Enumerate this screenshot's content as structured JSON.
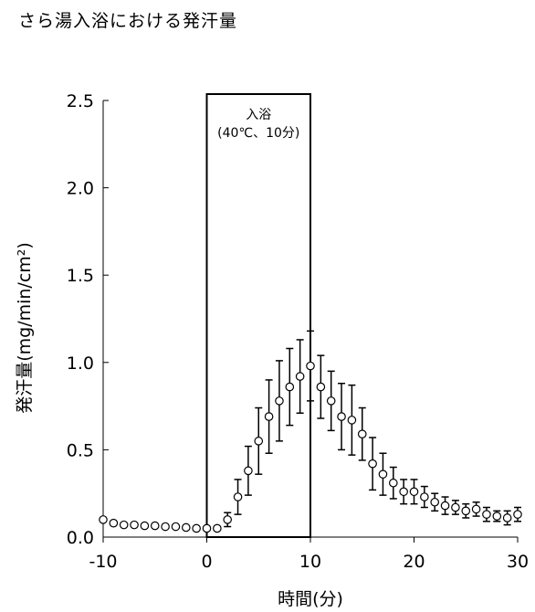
{
  "page": {
    "title": "さら湯入浴における発汗量"
  },
  "chart_data": {
    "type": "scatter",
    "title": "さら湯入浴における発汗量",
    "xlabel": "時間(分)",
    "ylabel": "発汗量(mg/min/cm²)",
    "xlim": [
      -10,
      30
    ],
    "ylim": [
      0,
      2.5
    ],
    "x_ticks": [
      -10,
      0,
      10,
      20,
      30
    ],
    "x_tick_labels": [
      "-10",
      "0",
      "10",
      "20",
      "30"
    ],
    "y_ticks": [
      0,
      0.5,
      1.0,
      1.5,
      2.0,
      2.5
    ],
    "y_tick_labels": [
      "0.0",
      "0.5",
      "1.0",
      "1.5",
      "2.0",
      "2.5"
    ],
    "grid": false,
    "annotation": {
      "label_line1": "入浴",
      "label_line2": "(40℃、10分)",
      "x_range": [
        0,
        10
      ]
    },
    "series": [
      {
        "marker": "open-circle",
        "x": [
          -10,
          -9,
          -8,
          -7,
          -6,
          -5,
          -4,
          -3,
          -2,
          -1,
          0,
          1,
          2,
          3,
          4,
          5,
          6,
          7,
          8,
          9,
          10,
          11,
          12,
          13,
          14,
          15,
          16,
          17,
          18,
          19,
          20,
          21,
          22,
          23,
          24,
          25,
          26,
          27,
          28,
          29,
          30
        ],
        "y": [
          0.1,
          0.08,
          0.07,
          0.07,
          0.065,
          0.065,
          0.06,
          0.06,
          0.055,
          0.05,
          0.05,
          0.05,
          0.1,
          0.23,
          0.38,
          0.55,
          0.69,
          0.78,
          0.86,
          0.92,
          0.98,
          0.86,
          0.78,
          0.69,
          0.67,
          0.59,
          0.42,
          0.36,
          0.31,
          0.26,
          0.26,
          0.23,
          0.2,
          0.18,
          0.17,
          0.15,
          0.16,
          0.13,
          0.12,
          0.11,
          0.13
        ],
        "error": [
          0,
          0,
          0,
          0,
          0,
          0,
          0,
          0,
          0,
          0,
          0,
          0,
          0.04,
          0.1,
          0.14,
          0.19,
          0.21,
          0.23,
          0.22,
          0.21,
          0.2,
          0.18,
          0.17,
          0.19,
          0.2,
          0.15,
          0.15,
          0.12,
          0.09,
          0.07,
          0.07,
          0.06,
          0.05,
          0.05,
          0.04,
          0.04,
          0.04,
          0.04,
          0.03,
          0.04,
          0.04
        ]
      }
    ]
  }
}
